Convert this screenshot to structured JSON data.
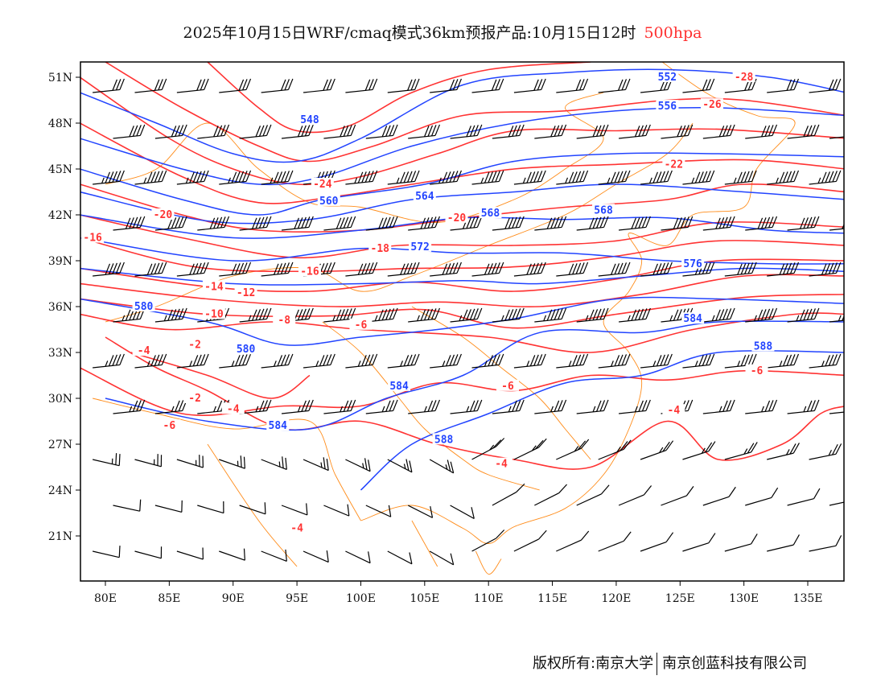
{
  "title": {
    "main": "2025年10月15日WRF/cmaq模式36km预报产品:10月15日12时",
    "level": "500hpa"
  },
  "footer": {
    "left": "版权所有:南京大学",
    "right": "南京创蓝科技有限公司"
  },
  "colors": {
    "temperature": "#ff3333",
    "height": "#2244ff",
    "border": "#ff8c1a",
    "wind": "#000000"
  },
  "map": {
    "lon_ticks": [
      "80E",
      "85E",
      "90E",
      "95E",
      "100E",
      "105E",
      "110E",
      "115E",
      "120E",
      "125E",
      "130E",
      "135E"
    ],
    "lon_values": [
      80,
      85,
      90,
      95,
      100,
      105,
      110,
      115,
      120,
      125,
      130,
      135
    ],
    "lat_ticks": [
      "21N",
      "24N",
      "27N",
      "30N",
      "33N",
      "36N",
      "39N",
      "42N",
      "45N",
      "48N",
      "51N"
    ],
    "lat_values": [
      21,
      24,
      27,
      30,
      33,
      36,
      39,
      42,
      45,
      48,
      51
    ]
  },
  "chart_data": {
    "type": "contour",
    "lon_range": [
      78,
      138
    ],
    "lat_range": [
      18,
      52
    ],
    "height_contours": [
      {
        "value": 552,
        "points": [
          [
            78,
            50
          ],
          [
            84,
            48
          ],
          [
            90,
            46
          ],
          [
            95,
            45.5
          ],
          [
            100,
            47
          ],
          [
            108,
            50.5
          ],
          [
            116,
            51.3
          ],
          [
            124,
            51.5
          ],
          [
            132,
            51
          ],
          [
            138,
            50
          ]
        ]
      },
      {
        "value": 556,
        "points": [
          [
            78,
            47
          ],
          [
            86,
            45
          ],
          [
            92,
            44
          ],
          [
            97,
            44.5
          ],
          [
            104,
            46.5
          ],
          [
            112,
            48
          ],
          [
            120,
            48.8
          ],
          [
            128,
            49
          ],
          [
            138,
            48.5
          ]
        ]
      },
      {
        "value": 560,
        "points": [
          [
            78,
            45
          ],
          [
            86,
            43
          ],
          [
            92,
            42
          ],
          [
            97,
            43
          ],
          [
            105,
            44
          ],
          [
            112,
            45.5
          ],
          [
            120,
            46
          ],
          [
            128,
            46
          ],
          [
            138,
            45.8
          ]
        ]
      },
      {
        "value": 564,
        "points": [
          [
            78,
            43.5
          ],
          [
            88,
            41.6
          ],
          [
            96,
            41.7
          ],
          [
            104,
            43
          ],
          [
            112,
            43.5
          ],
          [
            120,
            44
          ],
          [
            130,
            43.5
          ],
          [
            138,
            43
          ]
        ]
      },
      {
        "value": 568,
        "points": [
          [
            78,
            42
          ],
          [
            90,
            40.5
          ],
          [
            100,
            41
          ],
          [
            108,
            41.8
          ],
          [
            116,
            41.7
          ],
          [
            124,
            41.8
          ],
          [
            132,
            41
          ],
          [
            138,
            40.8
          ]
        ]
      },
      {
        "value": 572,
        "points": [
          [
            78,
            40.5
          ],
          [
            90,
            39
          ],
          [
            100,
            39.8
          ],
          [
            108,
            39.5
          ],
          [
            116,
            39.5
          ],
          [
            124,
            39
          ],
          [
            132,
            38.8
          ],
          [
            138,
            38.8
          ]
        ]
      },
      {
        "value": 576,
        "points": [
          [
            78,
            38.5
          ],
          [
            90,
            37.5
          ],
          [
            100,
            37.5
          ],
          [
            108,
            37.7
          ],
          [
            114,
            37.5
          ],
          [
            122,
            38
          ],
          [
            130,
            38.5
          ],
          [
            138,
            38.3
          ]
        ]
      },
      {
        "value": 580,
        "points": [
          [
            78,
            36.5
          ],
          [
            88,
            35
          ],
          [
            94,
            33.5
          ],
          [
            100,
            34
          ],
          [
            106,
            34.5
          ],
          [
            112,
            35.2
          ],
          [
            120,
            36.5
          ],
          [
            128,
            36.5
          ],
          [
            138,
            36.2
          ]
        ]
      },
      {
        "value": 584,
        "points": [
          [
            80,
            30
          ],
          [
            88,
            28.5
          ],
          [
            96,
            28
          ],
          [
            102,
            30
          ],
          [
            108,
            31.5
          ],
          [
            114,
            34.3
          ],
          [
            122,
            34.3
          ],
          [
            128,
            35
          ],
          [
            138,
            35
          ]
        ]
      },
      {
        "value": 588,
        "points": [
          [
            100,
            24
          ],
          [
            104,
            27
          ],
          [
            110,
            29
          ],
          [
            116,
            31
          ],
          [
            122,
            31.5
          ],
          [
            128,
            33
          ],
          [
            138,
            33
          ]
        ]
      }
    ],
    "temperature_contours": [
      {
        "value": -28,
        "points": [
          [
            88,
            52
          ],
          [
            92,
            49
          ],
          [
            95,
            47.5
          ],
          [
            99,
            47.8
          ],
          [
            104,
            50
          ],
          [
            110,
            51.5
          ],
          [
            118,
            52
          ]
        ]
      },
      {
        "value": -26,
        "points": [
          [
            80,
            52
          ],
          [
            86,
            49
          ],
          [
            92,
            46.5
          ],
          [
            96,
            45.5
          ],
          [
            101,
            46.5
          ],
          [
            108,
            48.5
          ],
          [
            116,
            48.8
          ],
          [
            124,
            49.5
          ],
          [
            130,
            49.5
          ],
          [
            138,
            48.5
          ]
        ]
      },
      {
        "value": -24,
        "points": [
          [
            78,
            51
          ],
          [
            85,
            47
          ],
          [
            90,
            45
          ],
          [
            95,
            44
          ],
          [
            100,
            44.5
          ],
          [
            106,
            46
          ],
          [
            112,
            47.5
          ],
          [
            120,
            47.5
          ],
          [
            128,
            47.6
          ],
          [
            138,
            47
          ]
        ]
      },
      {
        "value": -22,
        "points": [
          [
            78,
            48
          ],
          [
            86,
            44.5
          ],
          [
            92,
            42.8
          ],
          [
            98,
            43.2
          ],
          [
            104,
            44
          ],
          [
            112,
            45
          ],
          [
            120,
            45.3
          ],
          [
            130,
            45.6
          ],
          [
            138,
            45
          ]
        ]
      },
      {
        "value": -20,
        "points": [
          [
            78,
            44
          ],
          [
            86,
            42
          ],
          [
            92,
            41
          ],
          [
            100,
            41
          ],
          [
            108,
            41.8
          ],
          [
            116,
            42.5
          ],
          [
            124,
            43
          ],
          [
            130,
            44
          ],
          [
            138,
            43.5
          ]
        ]
      },
      {
        "value": -18,
        "points": [
          [
            78,
            42
          ],
          [
            86,
            40.5
          ],
          [
            95,
            39.2
          ],
          [
            103,
            40
          ],
          [
            112,
            40
          ],
          [
            120,
            40.3
          ],
          [
            128,
            41.5
          ],
          [
            138,
            41.2
          ]
        ]
      },
      {
        "value": -16,
        "points": [
          [
            78,
            40.5
          ],
          [
            87,
            38.6
          ],
          [
            96,
            38.3
          ],
          [
            104,
            38.5
          ],
          [
            112,
            38.6
          ],
          [
            120,
            39.3
          ],
          [
            128,
            40.3
          ],
          [
            138,
            40
          ]
        ]
      },
      {
        "value": -14,
        "points": [
          [
            78,
            38.5
          ],
          [
            88,
            37.3
          ],
          [
            96,
            37
          ],
          [
            104,
            37.6
          ],
          [
            112,
            37
          ],
          [
            120,
            37.8
          ],
          [
            128,
            39
          ],
          [
            138,
            39
          ]
        ]
      },
      {
        "value": -12,
        "points": [
          [
            78,
            37.5
          ],
          [
            88,
            36.5
          ],
          [
            98,
            36
          ],
          [
            106,
            36.3
          ],
          [
            114,
            36
          ],
          [
            122,
            36.8
          ],
          [
            130,
            38
          ],
          [
            138,
            38
          ]
        ]
      },
      {
        "value": -10,
        "points": [
          [
            78,
            36.5
          ],
          [
            88,
            35.5
          ],
          [
            98,
            35.4
          ],
          [
            105,
            35.8
          ],
          [
            112,
            34.6
          ],
          [
            120,
            35.5
          ],
          [
            130,
            36.6
          ],
          [
            138,
            36.8
          ]
        ]
      },
      {
        "value": -8,
        "points": [
          [
            78,
            35.5
          ],
          [
            85,
            34.5
          ],
          [
            93,
            35
          ],
          [
            100,
            34.5
          ],
          [
            110,
            34
          ],
          [
            118,
            33
          ],
          [
            126,
            34.5
          ],
          [
            134,
            35.5
          ],
          [
            138,
            35.5
          ]
        ]
      },
      {
        "value": -6,
        "points": [
          [
            78,
            32
          ],
          [
            86,
            29
          ],
          [
            94,
            29.5
          ],
          [
            100,
            29.5
          ],
          [
            106,
            31
          ],
          [
            112,
            30.5
          ],
          [
            118,
            31.5
          ],
          [
            124,
            31.2
          ],
          [
            130,
            31.8
          ],
          [
            138,
            31.5
          ]
        ]
      },
      {
        "value": -4,
        "points": [
          [
            80,
            34
          ],
          [
            84,
            32
          ],
          [
            88,
            30.5
          ],
          [
            94,
            28
          ],
          [
            100,
            28.5
          ],
          [
            106,
            27
          ],
          [
            112,
            26
          ],
          [
            118,
            25.5
          ],
          [
            124,
            28.5
          ],
          [
            128,
            26
          ],
          [
            133,
            27
          ],
          [
            136,
            29
          ],
          [
            138,
            29.5
          ]
        ]
      },
      {
        "value": -2,
        "points": [
          [
            82,
            33
          ],
          [
            88,
            31.5
          ],
          [
            93,
            30
          ],
          [
            96,
            31.5
          ]
        ]
      }
    ],
    "height_labels": [
      {
        "text": "548",
        "lon": 96,
        "lat": 48.2
      },
      {
        "text": "552",
        "lon": 124,
        "lat": 51
      },
      {
        "text": "556",
        "lon": 124,
        "lat": 49.1
      },
      {
        "text": "560",
        "lon": 97.5,
        "lat": 42.9
      },
      {
        "text": "564",
        "lon": 105,
        "lat": 43.2
      },
      {
        "text": "568",
        "lon": 108,
        "lat": 42.1
      },
      {
        "text": "568",
        "lon": 119,
        "lat": 42.3
      },
      {
        "text": "572",
        "lon": 102.5,
        "lat": 39.9
      },
      {
        "text": "576",
        "lon": 126,
        "lat": 38.8
      },
      {
        "text": "580",
        "lon": 83,
        "lat": 36
      },
      {
        "text": "580",
        "lon": 91,
        "lat": 33.2
      },
      {
        "text": "584",
        "lon": 126,
        "lat": 35.2
      },
      {
        "text": "584",
        "lon": 93.5,
        "lat": 28.2
      },
      {
        "text": "584",
        "lon": 103,
        "lat": 30.8
      },
      {
        "text": "588",
        "lon": 106.5,
        "lat": 27.3
      },
      {
        "text": "588",
        "lon": 131.5,
        "lat": 33.4
      }
    ],
    "temperature_labels": [
      {
        "text": "-28",
        "lon": 130,
        "lat": 51
      },
      {
        "text": "-26",
        "lon": 127.5,
        "lat": 49.2
      },
      {
        "text": "-24",
        "lon": 97,
        "lat": 44
      },
      {
        "text": "-22",
        "lon": 124.5,
        "lat": 45.3
      },
      {
        "text": "-20",
        "lon": 84.5,
        "lat": 42
      },
      {
        "text": "-20",
        "lon": 107.5,
        "lat": 41.8
      },
      {
        "text": "-18",
        "lon": 101.5,
        "lat": 39.8
      },
      {
        "text": "-16",
        "lon": 79,
        "lat": 40.5
      },
      {
        "text": "-16",
        "lon": 96,
        "lat": 38.3
      },
      {
        "text": "-14",
        "lon": 88.5,
        "lat": 37.3
      },
      {
        "text": "-12",
        "lon": 91,
        "lat": 36.9
      },
      {
        "text": "-10",
        "lon": 88.5,
        "lat": 35.5
      },
      {
        "text": "-8",
        "lon": 94,
        "lat": 35.1
      },
      {
        "text": "-6",
        "lon": 100,
        "lat": 34.8
      },
      {
        "text": "-6",
        "lon": 111.5,
        "lat": 30.8
      },
      {
        "text": "-6",
        "lon": 131,
        "lat": 31.8
      },
      {
        "text": "-4",
        "lon": 83,
        "lat": 33.1
      },
      {
        "text": "-4",
        "lon": 90,
        "lat": 29.3
      },
      {
        "text": "-4",
        "lon": 124.5,
        "lat": 29.2
      },
      {
        "text": "-4",
        "lon": 111,
        "lat": 25.7
      },
      {
        "text": "-4",
        "lon": 95,
        "lat": 21.5
      },
      {
        "text": "-2",
        "lon": 87,
        "lat": 33.5
      },
      {
        "text": "-2",
        "lon": 87,
        "lat": 30
      },
      {
        "text": "-6",
        "lon": 85,
        "lat": 28.2
      }
    ],
    "wind_speed_by_lat_knots": [
      {
        "lat": 50,
        "speed": 30
      },
      {
        "lat": 47,
        "speed": 40
      },
      {
        "lat": 44,
        "speed": 45
      },
      {
        "lat": 41,
        "speed": 50
      },
      {
        "lat": 38,
        "speed": 50
      },
      {
        "lat": 35,
        "speed": 45
      },
      {
        "lat": 32,
        "speed": 35
      },
      {
        "lat": 29,
        "speed": 25
      },
      {
        "lat": 26,
        "speed": 15
      },
      {
        "lat": 23,
        "speed": 10
      },
      {
        "lat": 20,
        "speed": 10
      }
    ]
  }
}
